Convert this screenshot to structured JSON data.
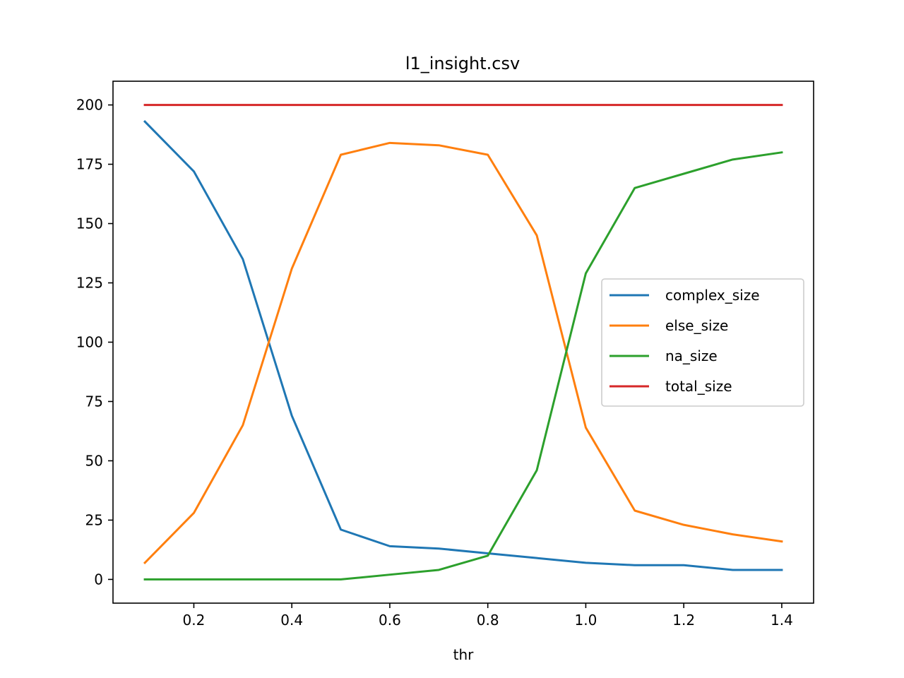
{
  "chart_data": {
    "type": "line",
    "title": "l1_insight.csv",
    "xlabel": "thr",
    "ylabel": "",
    "x": [
      0.1,
      0.2,
      0.3,
      0.4,
      0.5,
      0.6,
      0.7,
      0.8,
      0.9,
      1.0,
      1.1,
      1.2,
      1.3,
      1.4
    ],
    "xlim": [
      0.035,
      1.465
    ],
    "ylim": [
      -10,
      210
    ],
    "xticks": [
      0.2,
      0.4,
      0.6,
      0.8,
      1.0,
      1.2,
      1.4
    ],
    "xtick_labels": [
      "0.2",
      "0.4",
      "0.6",
      "0.8",
      "1.0",
      "1.2",
      "1.4"
    ],
    "yticks": [
      0,
      25,
      50,
      75,
      100,
      125,
      150,
      175,
      200
    ],
    "ytick_labels": [
      "0",
      "25",
      "50",
      "75",
      "100",
      "125",
      "150",
      "175",
      "200"
    ],
    "grid": false,
    "legend_position": "center-right",
    "series": [
      {
        "name": "complex_size",
        "color": "#1f77b4",
        "values": [
          193,
          172,
          135,
          69,
          21,
          14,
          13,
          11,
          9,
          7,
          6,
          6,
          4,
          4
        ]
      },
      {
        "name": "else_size",
        "color": "#ff7f0e",
        "values": [
          7,
          28,
          65,
          131,
          179,
          184,
          183,
          179,
          145,
          64,
          29,
          23,
          19,
          16
        ]
      },
      {
        "name": "na_size",
        "color": "#2ca02c",
        "values": [
          0,
          0,
          0,
          0,
          0,
          2,
          4,
          10,
          46,
          129,
          165,
          171,
          177,
          180
        ]
      },
      {
        "name": "total_size",
        "color": "#d62728",
        "values": [
          200,
          200,
          200,
          200,
          200,
          200,
          200,
          200,
          200,
          200,
          200,
          200,
          200,
          200
        ]
      }
    ]
  }
}
